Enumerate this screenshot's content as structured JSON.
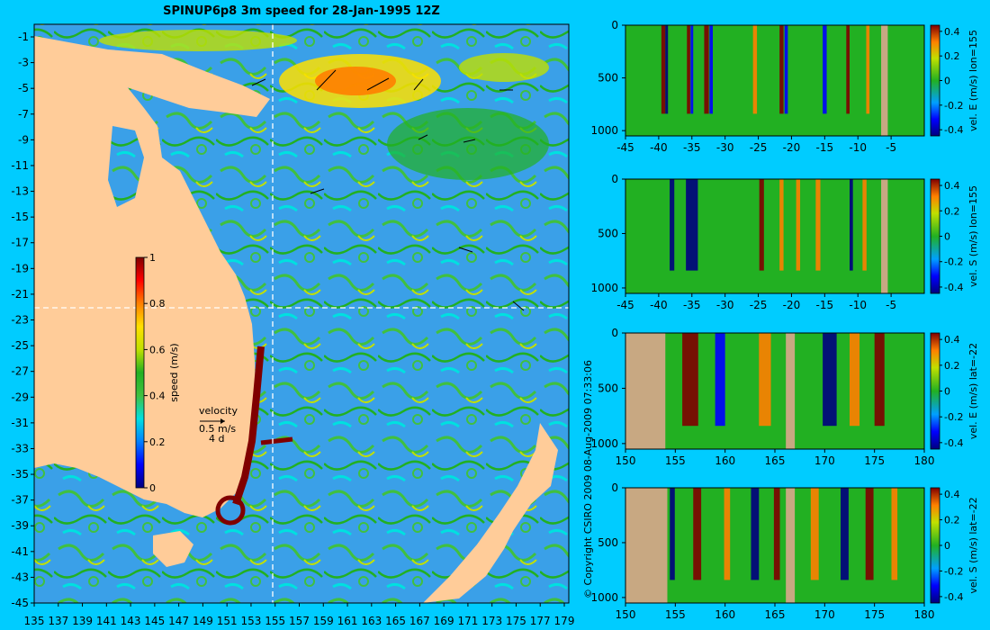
{
  "title": "SPINUP6p8 3m speed for 28-Jan-1995 12Z",
  "colors": {
    "background": "#00ccff",
    "land": "#ffcc99",
    "land_section": "#c8a882",
    "ocean_mid": "#22b022",
    "colormap": [
      "#00007f",
      "#0000ff",
      "#0080ff",
      "#00e0e0",
      "#40c040",
      "#22b022",
      "#c0e000",
      "#ffe000",
      "#ff8000",
      "#ff0000",
      "#800000"
    ]
  },
  "map": {
    "lon_ticks": [
      "135",
      "137",
      "139",
      "141",
      "143",
      "145",
      "147",
      "149",
      "151",
      "153",
      "155",
      "157",
      "159",
      "161",
      "163",
      "165",
      "167",
      "169",
      "171",
      "173",
      "175",
      "177",
      "179"
    ],
    "lat_ticks": [
      "-1",
      "-3",
      "-5",
      "-7",
      "-9",
      "-11",
      "-13",
      "-15",
      "-17",
      "-19",
      "-21",
      "-23",
      "-25",
      "-27",
      "-29",
      "-31",
      "-33",
      "-35",
      "-37",
      "-39",
      "-41",
      "-43",
      "-45"
    ],
    "xlim": [
      135,
      180
    ],
    "ylim": [
      -45,
      0
    ],
    "section_lon": 155,
    "section_lat": -22,
    "colorbar": {
      "label": "speed (m/s)",
      "ticks": [
        "1",
        "0.8",
        "0.6",
        "0.4",
        "0.2",
        "0"
      ],
      "range": [
        0,
        1
      ]
    },
    "velocity_legend": {
      "label": "velocity",
      "scale": "0.5 m/s",
      "time": "4 d"
    },
    "copyright": "© Copyright CSIRO 2009   08-Aug-2009 07:33:06"
  },
  "chart_data": [
    {
      "type": "heatmap",
      "ylabel": "vel. E (m/s) lon=155",
      "x_ticks": [
        "-45",
        "-40",
        "-35",
        "-30",
        "-25",
        "-20",
        "-15",
        "-10",
        "-5"
      ],
      "y_ticks": [
        "0",
        "500",
        "1000"
      ],
      "xlim": [
        -45,
        0
      ],
      "ylim": [
        1050,
        0
      ],
      "colorbar_ticks": [
        "0.4",
        "0.2",
        "0",
        "-0.2",
        "-0.4"
      ],
      "clim": [
        -0.45,
        0.45
      ],
      "bands": [
        {
          "x": -39.3,
          "w": 0.6,
          "v": 0.45
        },
        {
          "x": -38.8,
          "w": 0.4,
          "v": -0.45
        },
        {
          "x": -35.5,
          "w": 0.5,
          "v": 0.4
        },
        {
          "x": -35.0,
          "w": 0.4,
          "v": -0.3
        },
        {
          "x": -32.8,
          "w": 0.7,
          "v": 0.45
        },
        {
          "x": -32.1,
          "w": 0.5,
          "v": -0.3
        },
        {
          "x": -25.5,
          "w": 0.6,
          "v": 0.3
        },
        {
          "x": -21.5,
          "w": 0.6,
          "v": 0.45
        },
        {
          "x": -20.8,
          "w": 0.5,
          "v": -0.25
        },
        {
          "x": -15.0,
          "w": 0.6,
          "v": -0.3
        },
        {
          "x": -11.5,
          "w": 0.5,
          "v": 0.4
        },
        {
          "x": -8.5,
          "w": 0.5,
          "v": 0.35
        }
      ],
      "land": [
        {
          "x0": -6.5,
          "x1": -5.5
        }
      ]
    },
    {
      "type": "heatmap",
      "ylabel": "vel. S (m/s) lon=155",
      "x_ticks": [
        "-45",
        "-40",
        "-35",
        "-30",
        "-25",
        "-20",
        "-15",
        "-10",
        "-5"
      ],
      "y_ticks": [
        "0",
        "500",
        "1000"
      ],
      "xlim": [
        -45,
        0
      ],
      "ylim": [
        1050,
        0
      ],
      "colorbar_ticks": [
        "0.4",
        "0.2",
        "0",
        "-0.2",
        "-0.4"
      ],
      "clim": [
        -0.45,
        0.45
      ],
      "bands": [
        {
          "x": -38.0,
          "w": 0.7,
          "v": -0.45
        },
        {
          "x": -35.0,
          "w": 1.8,
          "v": -0.45
        },
        {
          "x": -24.5,
          "w": 0.7,
          "v": 0.45
        },
        {
          "x": -21.5,
          "w": 0.6,
          "v": 0.35
        },
        {
          "x": -19.0,
          "w": 0.6,
          "v": 0.3
        },
        {
          "x": -16.0,
          "w": 0.7,
          "v": 0.3
        },
        {
          "x": -11.0,
          "w": 0.5,
          "v": -0.4
        },
        {
          "x": -9.0,
          "w": 0.6,
          "v": 0.25
        }
      ],
      "land": [
        {
          "x0": -6.5,
          "x1": -5.5
        }
      ]
    },
    {
      "type": "heatmap",
      "ylabel": "vel. E (m/s) lat=-22",
      "x_ticks": [
        "150",
        "155",
        "160",
        "165",
        "170",
        "175",
        "180"
      ],
      "y_ticks": [
        "0",
        "500",
        "1000"
      ],
      "xlim": [
        150,
        180
      ],
      "ylim": [
        1050,
        0
      ],
      "colorbar_ticks": [
        "0.4",
        "0.2",
        "0",
        "-0.2",
        "-0.4"
      ],
      "clim": [
        -0.45,
        0.45
      ],
      "bands": [
        {
          "x": 156.5,
          "w": 1.6,
          "v": 0.45
        },
        {
          "x": 159.5,
          "w": 1.0,
          "v": -0.35
        },
        {
          "x": 164.0,
          "w": 1.2,
          "v": 0.35
        },
        {
          "x": 170.5,
          "w": 1.4,
          "v": -0.45
        },
        {
          "x": 173.0,
          "w": 1.0,
          "v": 0.35
        },
        {
          "x": 175.5,
          "w": 1.0,
          "v": 0.4
        }
      ],
      "land": [
        {
          "x0": 150,
          "x1": 154
        },
        {
          "x0": 166.1,
          "x1": 167.0
        }
      ]
    },
    {
      "type": "heatmap",
      "ylabel": "vel. S (m/s) lat=-22",
      "x_ticks": [
        "150",
        "155",
        "160",
        "165",
        "170",
        "175",
        "180"
      ],
      "y_ticks": [
        "0",
        "500",
        "1000"
      ],
      "xlim": [
        150,
        180
      ],
      "ylim": [
        1050,
        0
      ],
      "colorbar_ticks": [
        "0.4",
        "0.2",
        "0",
        "-0.2",
        "-0.4"
      ],
      "clim": [
        -0.45,
        0.45
      ],
      "bands": [
        {
          "x": 154.7,
          "w": 0.5,
          "v": -0.45
        },
        {
          "x": 157.2,
          "w": 0.8,
          "v": 0.4
        },
        {
          "x": 160.2,
          "w": 0.6,
          "v": 0.3
        },
        {
          "x": 163.0,
          "w": 0.8,
          "v": -0.45
        },
        {
          "x": 165.2,
          "w": 0.6,
          "v": 0.45
        },
        {
          "x": 169.0,
          "w": 0.8,
          "v": 0.35
        },
        {
          "x": 172.0,
          "w": 0.8,
          "v": -0.45
        },
        {
          "x": 174.5,
          "w": 0.8,
          "v": 0.45
        },
        {
          "x": 177.0,
          "w": 0.6,
          "v": 0.3
        }
      ],
      "land": [
        {
          "x0": 150,
          "x1": 154.2
        },
        {
          "x0": 166.1,
          "x1": 167.0
        }
      ]
    }
  ]
}
